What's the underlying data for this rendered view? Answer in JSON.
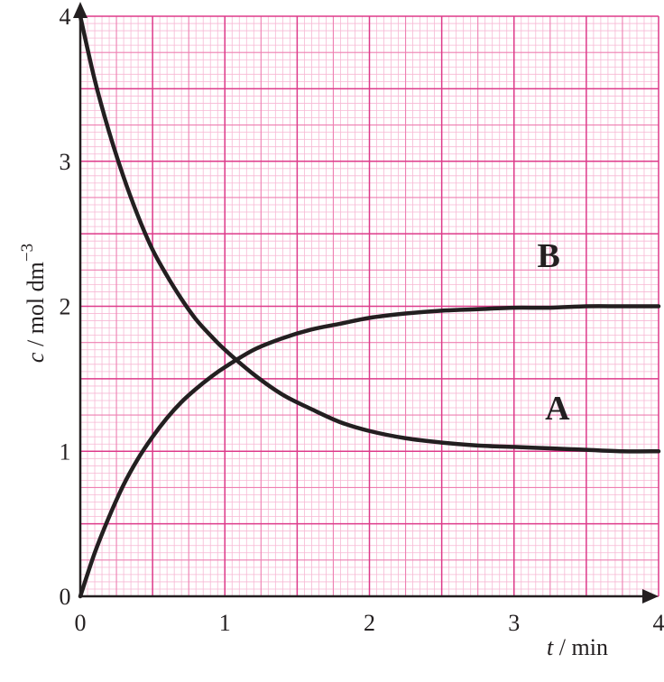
{
  "chart_data": {
    "type": "line",
    "title": "",
    "xlabel": {
      "symbol": "t",
      "unit": " / min"
    },
    "ylabel": {
      "symbol": "c",
      "unit": " / mol dm",
      "sup": "−3"
    },
    "xlim": [
      0,
      4
    ],
    "ylim": [
      0,
      4
    ],
    "x_ticks": [
      "0",
      "1",
      "2",
      "3",
      "4"
    ],
    "y_ticks": [
      "0",
      "1",
      "2",
      "3",
      "4"
    ],
    "grid": true,
    "colors": {
      "grid_fine": "#f7b8d4",
      "grid_mid": "#ee7fb1",
      "grid_major": "#dd3a8a",
      "curve": "#231f20",
      "axis": "#231f20"
    },
    "series": [
      {
        "name": "A",
        "x": [
          0,
          0.1,
          0.2,
          0.3,
          0.4,
          0.5,
          0.6,
          0.7,
          0.8,
          0.9,
          1.0,
          1.2,
          1.4,
          1.6,
          1.8,
          2.0,
          2.25,
          2.5,
          2.75,
          3.0,
          3.25,
          3.5,
          3.75,
          4.0
        ],
        "values": [
          4.0,
          3.56,
          3.2,
          2.89,
          2.62,
          2.39,
          2.21,
          2.05,
          1.91,
          1.8,
          1.7,
          1.53,
          1.39,
          1.29,
          1.2,
          1.14,
          1.09,
          1.06,
          1.04,
          1.03,
          1.02,
          1.01,
          1.0,
          1.0
        ]
      },
      {
        "name": "B",
        "x": [
          0,
          0.1,
          0.2,
          0.3,
          0.4,
          0.5,
          0.6,
          0.7,
          0.8,
          0.9,
          1.0,
          1.2,
          1.4,
          1.6,
          1.8,
          2.0,
          2.25,
          2.5,
          2.75,
          3.0,
          3.25,
          3.5,
          3.75,
          4.0
        ],
        "values": [
          0.0,
          0.3,
          0.55,
          0.77,
          0.95,
          1.1,
          1.23,
          1.34,
          1.43,
          1.51,
          1.58,
          1.7,
          1.78,
          1.84,
          1.88,
          1.92,
          1.95,
          1.97,
          1.98,
          1.99,
          1.99,
          2.0,
          2.0,
          2.0
        ]
      }
    ],
    "labels": [
      {
        "text": "B",
        "x": 3.24,
        "y": 2.27
      },
      {
        "text": "A",
        "x": 3.3,
        "y": 1.22
      }
    ]
  }
}
